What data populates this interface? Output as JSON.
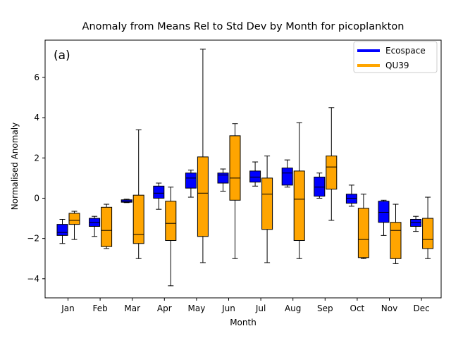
{
  "chart_data": {
    "type": "box",
    "title": "Anomaly from Means Rel to Std Dev by Month for picoplankton",
    "panel_label": "(a)",
    "xlabel": "Month",
    "ylabel": "Normalised Anomaly",
    "ylim": [
      -4.95,
      7.85
    ],
    "yticks": [
      -4,
      -2,
      0,
      2,
      4,
      6
    ],
    "categories": [
      "Jan",
      "Feb",
      "Mar",
      "Apr",
      "May",
      "Jun",
      "Jul",
      "Aug",
      "Sep",
      "Oct",
      "Nov",
      "Dec"
    ],
    "legend_position": "top-right",
    "series": [
      {
        "name": "Ecospace",
        "color": "#0000ff",
        "boxes": [
          {
            "whislo": -2.25,
            "q1": -1.85,
            "med": -1.7,
            "q3": -1.3,
            "whishi": -1.05
          },
          {
            "whislo": -1.9,
            "q1": -1.4,
            "med": -1.2,
            "q3": -1.0,
            "whishi": -0.9
          },
          {
            "whislo": -0.22,
            "q1": -0.2,
            "med": -0.15,
            "q3": -0.08,
            "whishi": -0.05
          },
          {
            "whislo": -0.55,
            "q1": 0.0,
            "med": 0.25,
            "q3": 0.6,
            "whishi": 0.75
          },
          {
            "whislo": 0.05,
            "q1": 0.5,
            "med": 1.0,
            "q3": 1.25,
            "whishi": 1.4
          },
          {
            "whislo": 0.35,
            "q1": 0.75,
            "med": 1.15,
            "q3": 1.25,
            "whishi": 1.45
          },
          {
            "whislo": 0.6,
            "q1": 0.8,
            "med": 1.05,
            "q3": 1.35,
            "whishi": 1.8
          },
          {
            "whislo": 0.55,
            "q1": 0.65,
            "med": 1.25,
            "q3": 1.5,
            "whishi": 1.9
          },
          {
            "whislo": 0.0,
            "q1": 0.1,
            "med": 0.55,
            "q3": 1.05,
            "whishi": 1.25
          },
          {
            "whislo": -0.4,
            "q1": -0.25,
            "med": 0.0,
            "q3": 0.2,
            "whishi": 0.65
          },
          {
            "whislo": -1.85,
            "q1": -1.2,
            "med": -0.7,
            "q3": -0.15,
            "whishi": -0.1
          },
          {
            "whislo": -1.65,
            "q1": -1.4,
            "med": -1.2,
            "q3": -1.05,
            "whishi": -0.9
          }
        ]
      },
      {
        "name": "QU39",
        "color": "#ffa500",
        "boxes": [
          {
            "whislo": -2.05,
            "q1": -1.3,
            "med": -1.1,
            "q3": -0.75,
            "whishi": -0.65
          },
          {
            "whislo": -2.5,
            "q1": -2.4,
            "med": -1.6,
            "q3": -0.45,
            "whishi": -0.3
          },
          {
            "whislo": -3.0,
            "q1": -2.25,
            "med": -1.8,
            "q3": 0.15,
            "whishi": 3.4
          },
          {
            "whislo": -4.35,
            "q1": -2.1,
            "med": -1.25,
            "q3": -0.15,
            "whishi": 0.55
          },
          {
            "whislo": -3.2,
            "q1": -1.9,
            "med": 0.25,
            "q3": 2.05,
            "whishi": 7.4
          },
          {
            "whislo": -3.0,
            "q1": -0.1,
            "med": 1.0,
            "q3": 3.1,
            "whishi": 3.7
          },
          {
            "whislo": -3.2,
            "q1": -1.55,
            "med": 0.2,
            "q3": 1.0,
            "whishi": 2.1
          },
          {
            "whislo": -3.0,
            "q1": -2.1,
            "med": -0.05,
            "q3": 1.35,
            "whishi": 3.75
          },
          {
            "whislo": -1.1,
            "q1": 0.45,
            "med": 1.55,
            "q3": 2.1,
            "whishi": 4.5
          },
          {
            "whislo": -3.0,
            "q1": -2.95,
            "med": -2.05,
            "q3": -0.5,
            "whishi": 0.2
          },
          {
            "whislo": -3.25,
            "q1": -3.0,
            "med": -1.6,
            "q3": -1.2,
            "whishi": -0.3
          },
          {
            "whislo": -3.0,
            "q1": -2.5,
            "med": -2.05,
            "q3": -1.0,
            "whishi": 0.05
          }
        ]
      }
    ]
  }
}
